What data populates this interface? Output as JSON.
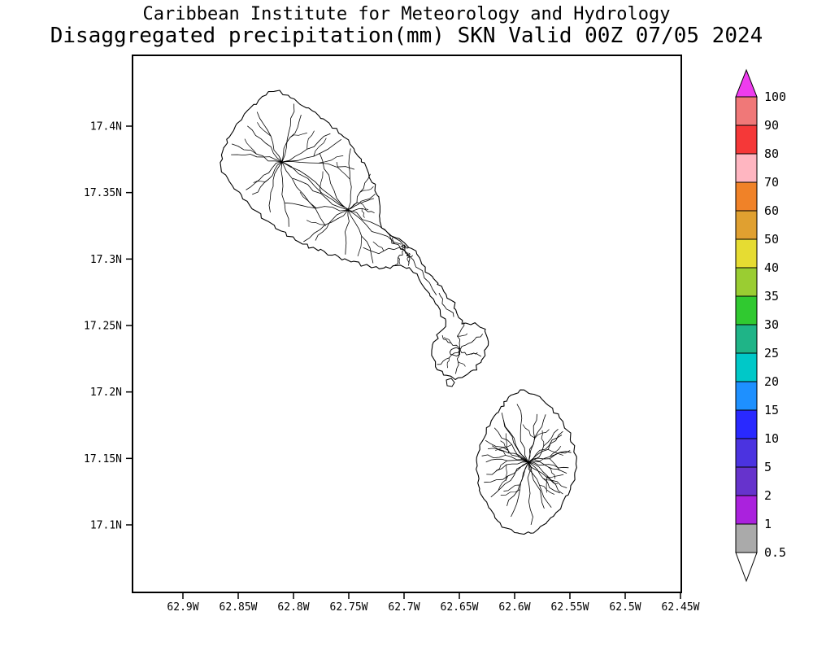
{
  "header": {
    "line1": "Caribbean Institute for Meteorology and Hydrology",
    "line2": "Disaggregated precipitation(mm) SKN Valid 00Z 07/05 2024"
  },
  "map": {
    "lat_labels": [
      "17.4N",
      "17.35N",
      "17.3N",
      "17.25N",
      "17.2N",
      "17.15N",
      "17.1N"
    ],
    "lon_labels": [
      "62.9W",
      "62.85W",
      "62.8W",
      "62.75W",
      "62.7W",
      "62.65W",
      "62.6W",
      "62.55W",
      "62.5W",
      "62.45W"
    ]
  },
  "colorbar": {
    "unit": "mm",
    "tick_labels": [
      "100",
      "90",
      "80",
      "70",
      "60",
      "50",
      "40",
      "35",
      "30",
      "25",
      "20",
      "15",
      "10",
      "5",
      "2",
      "1",
      "0.5"
    ],
    "segment_colors_top_to_bottom": [
      "#F07878",
      "#F53838",
      "#FFB6C1",
      "#F08228",
      "#E0A030",
      "#E6DC32",
      "#9ACD32",
      "#30C930",
      "#1FB487",
      "#00C8C8",
      "#1E90FF",
      "#2929FF",
      "#4B33E0",
      "#6633CC",
      "#AA22DD",
      "#AAAAAA"
    ],
    "above_max_color": "#EE3CEE",
    "below_min_color": "#FFFFFF",
    "outline_color": "#000000"
  }
}
